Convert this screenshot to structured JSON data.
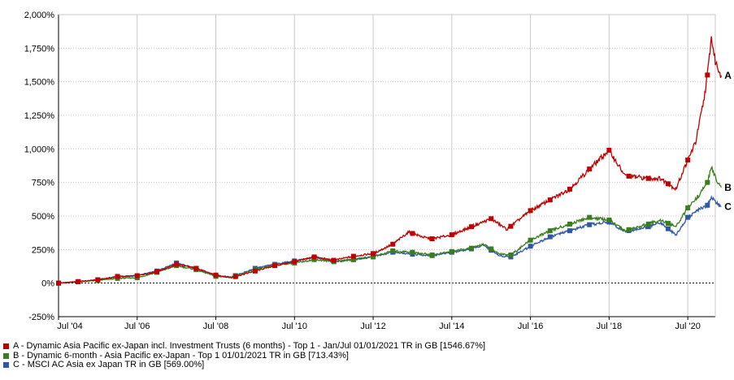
{
  "chart_data": {
    "type": "line",
    "y_unit": "%",
    "ylim": [
      -250,
      2000
    ],
    "y_ticks": [
      "2,000%",
      "1,750%",
      "1,500%",
      "1,250%",
      "1,000%",
      "750%",
      "500%",
      "250%",
      "0%",
      "-250%"
    ],
    "y_tick_values": [
      2000,
      1750,
      1500,
      1250,
      1000,
      750,
      500,
      250,
      0,
      -250
    ],
    "x_ticks": [
      "Jul '04",
      "Jul '06",
      "Jul '08",
      "Jul '10",
      "Jul '12",
      "Jul '14",
      "Jul '16",
      "Jul '18",
      "Jul '20"
    ],
    "x_tick_values": [
      2004.5,
      2006.5,
      2008.5,
      2010.5,
      2012.5,
      2014.5,
      2016.5,
      2018.5,
      2020.5
    ],
    "xlim": [
      2004.5,
      2021.2
    ],
    "grid": true,
    "legend_position": "bottom-left",
    "series": [
      {
        "key": "A",
        "name": "A - Dynamic Asia Pacific ex-Japan incl. Investment Trusts (6 months) - Top 1 - Jan/Jul 01/01/2021 TR in GB [1546.67%]",
        "color": "#c00000",
        "points": [
          [
            2004.5,
            0
          ],
          [
            2005.0,
            10
          ],
          [
            2005.5,
            25
          ],
          [
            2006.0,
            50
          ],
          [
            2006.5,
            55
          ],
          [
            2007.0,
            85
          ],
          [
            2007.5,
            140
          ],
          [
            2008.0,
            110
          ],
          [
            2008.5,
            60
          ],
          [
            2008.9,
            40
          ],
          [
            2009.5,
            90
          ],
          [
            2010.0,
            130
          ],
          [
            2010.5,
            160
          ],
          [
            2011.0,
            195
          ],
          [
            2011.5,
            170
          ],
          [
            2012.0,
            200
          ],
          [
            2012.5,
            220
          ],
          [
            2013.0,
            290
          ],
          [
            2013.4,
            380
          ],
          [
            2013.8,
            340
          ],
          [
            2014.0,
            330
          ],
          [
            2014.5,
            360
          ],
          [
            2015.0,
            420
          ],
          [
            2015.5,
            480
          ],
          [
            2015.9,
            400
          ],
          [
            2016.5,
            540
          ],
          [
            2017.0,
            620
          ],
          [
            2017.5,
            700
          ],
          [
            2018.0,
            850
          ],
          [
            2018.5,
            990
          ],
          [
            2018.9,
            800
          ],
          [
            2019.5,
            780
          ],
          [
            2019.8,
            780
          ],
          [
            2020.2,
            700
          ],
          [
            2020.4,
            850
          ],
          [
            2020.7,
            1050
          ],
          [
            2020.9,
            1350
          ],
          [
            2021.0,
            1550
          ],
          [
            2021.1,
            1830
          ],
          [
            2021.2,
            1650
          ],
          [
            2021.35,
            1547
          ]
        ]
      },
      {
        "key": "B",
        "name": "B - Dynamic 6-month - Asia Pacific ex-Japan - Top 1 01/01/2021 TR in GB [713.43%]",
        "color": "#3a7d1c",
        "points": [
          [
            2004.5,
            0
          ],
          [
            2005.0,
            10
          ],
          [
            2005.5,
            20
          ],
          [
            2006.0,
            35
          ],
          [
            2006.5,
            40
          ],
          [
            2007.0,
            80
          ],
          [
            2007.5,
            130
          ],
          [
            2008.0,
            100
          ],
          [
            2008.5,
            50
          ],
          [
            2008.9,
            45
          ],
          [
            2009.5,
            100
          ],
          [
            2010.0,
            135
          ],
          [
            2010.5,
            150
          ],
          [
            2011.0,
            175
          ],
          [
            2011.5,
            160
          ],
          [
            2012.0,
            175
          ],
          [
            2012.5,
            195
          ],
          [
            2013.0,
            240
          ],
          [
            2013.5,
            230
          ],
          [
            2014.0,
            210
          ],
          [
            2014.5,
            235
          ],
          [
            2015.0,
            260
          ],
          [
            2015.3,
            290
          ],
          [
            2015.7,
            220
          ],
          [
            2016.0,
            210
          ],
          [
            2016.5,
            320
          ],
          [
            2017.0,
            390
          ],
          [
            2017.5,
            440
          ],
          [
            2018.0,
            490
          ],
          [
            2018.5,
            470
          ],
          [
            2018.9,
            390
          ],
          [
            2019.5,
            440
          ],
          [
            2019.8,
            470
          ],
          [
            2020.2,
            420
          ],
          [
            2020.5,
            560
          ],
          [
            2020.8,
            660
          ],
          [
            2021.0,
            750
          ],
          [
            2021.1,
            860
          ],
          [
            2021.25,
            760
          ],
          [
            2021.35,
            713
          ]
        ]
      },
      {
        "key": "C",
        "name": "C - MSCI AC Asia ex Japan TR in GB [569.00%]",
        "color": "#2f57a8",
        "points": [
          [
            2004.5,
            0
          ],
          [
            2005.0,
            12
          ],
          [
            2005.5,
            25
          ],
          [
            2006.0,
            45
          ],
          [
            2006.5,
            55
          ],
          [
            2007.0,
            90
          ],
          [
            2007.5,
            150
          ],
          [
            2008.0,
            110
          ],
          [
            2008.5,
            55
          ],
          [
            2008.9,
            45
          ],
          [
            2009.5,
            110
          ],
          [
            2010.0,
            140
          ],
          [
            2010.5,
            165
          ],
          [
            2011.0,
            190
          ],
          [
            2011.5,
            160
          ],
          [
            2012.0,
            175
          ],
          [
            2012.5,
            200
          ],
          [
            2013.0,
            230
          ],
          [
            2013.5,
            215
          ],
          [
            2014.0,
            205
          ],
          [
            2014.5,
            230
          ],
          [
            2015.0,
            255
          ],
          [
            2015.3,
            285
          ],
          [
            2015.7,
            205
          ],
          [
            2016.0,
            195
          ],
          [
            2016.5,
            275
          ],
          [
            2017.0,
            345
          ],
          [
            2017.5,
            390
          ],
          [
            2018.0,
            435
          ],
          [
            2018.5,
            455
          ],
          [
            2018.9,
            385
          ],
          [
            2019.5,
            420
          ],
          [
            2019.8,
            450
          ],
          [
            2020.2,
            360
          ],
          [
            2020.5,
            490
          ],
          [
            2020.8,
            550
          ],
          [
            2021.0,
            580
          ],
          [
            2021.1,
            640
          ],
          [
            2021.25,
            590
          ],
          [
            2021.35,
            569
          ]
        ]
      }
    ]
  }
}
